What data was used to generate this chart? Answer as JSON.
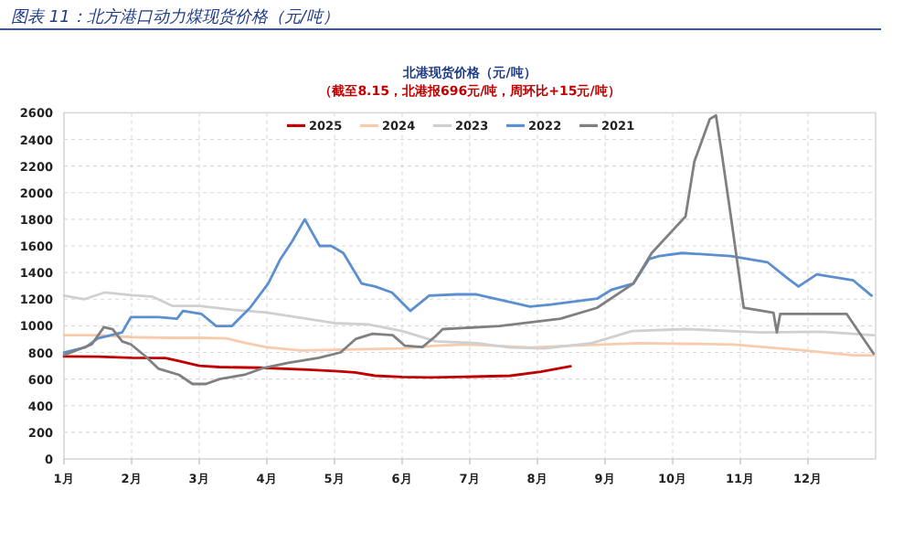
{
  "chart_data": {
    "type": "line",
    "title": "图表 11：北方港口动力煤现货价格（元/吨）",
    "subtitle": "北港现货价格（元/吨）",
    "annotations": [
      "（截至8.15，北港报696元/吨，周环比+15元/吨）"
    ],
    "xlim": [
      1,
      13
    ],
    "xticks": [
      {
        "value": 1,
        "label": "1月"
      },
      {
        "value": 2,
        "label": "2月"
      },
      {
        "value": 3,
        "label": "3月"
      },
      {
        "value": 4,
        "label": "4月"
      },
      {
        "value": 5,
        "label": "5月"
      },
      {
        "value": 6,
        "label": "6月"
      },
      {
        "value": 7,
        "label": "7月"
      },
      {
        "value": 8,
        "label": "8月"
      },
      {
        "value": 9,
        "label": "9月"
      },
      {
        "value": 10,
        "label": "10月"
      },
      {
        "value": 11,
        "label": "11月"
      },
      {
        "value": 12,
        "label": "12月"
      }
    ],
    "ylim": [
      0,
      2600
    ],
    "yticks": [
      0,
      200,
      400,
      600,
      800,
      1000,
      1200,
      1400,
      1600,
      1800,
      2000,
      2200,
      2400,
      2600
    ],
    "grid": true,
    "legend": "top",
    "marker": "none",
    "line_style": "solid",
    "series": [
      {
        "name": "2025",
        "color": "#c00000",
        "x": [
          1,
          1.5,
          2,
          2.5,
          2.7,
          3,
          3.3,
          3.9,
          4.6,
          5,
          5.3,
          5.6,
          6,
          6.4,
          6.8,
          7.6,
          8.05,
          8.49
        ],
        "values": [
          770,
          768,
          760,
          758,
          735,
          700,
          690,
          685,
          670,
          660,
          650,
          625,
          615,
          612,
          615,
          625,
          655,
          696
        ]
      },
      {
        "name": "2024",
        "color": "#f8cbad",
        "x": [
          1,
          1.5,
          2,
          2.5,
          3,
          3.4,
          3.7,
          4,
          4.5,
          5,
          5.5,
          6,
          6.5,
          7,
          7.9,
          8.5,
          9.5,
          10.9,
          11.95,
          12.67,
          12.97
        ],
        "values": [
          930,
          930,
          915,
          910,
          910,
          905,
          870,
          838,
          815,
          820,
          825,
          830,
          850,
          860,
          837,
          850,
          870,
          860,
          815,
          778,
          778
        ]
      },
      {
        "name": "2023",
        "color": "#d0d0d0",
        "x": [
          1,
          1.3,
          1.6,
          2,
          2.3,
          2.6,
          3,
          3.5,
          4,
          4.5,
          5,
          5.5,
          6,
          6.5,
          7.1,
          7.6,
          8.1,
          8.8,
          9.4,
          10.2,
          11.3,
          12.2,
          12.97
        ],
        "values": [
          1227,
          1200,
          1250,
          1230,
          1220,
          1150,
          1150,
          1120,
          1100,
          1060,
          1020,
          1010,
          960,
          883,
          870,
          837,
          830,
          870,
          960,
          975,
          950,
          955,
          930
        ]
      },
      {
        "name": "2022",
        "color": "#5b8fd0",
        "x": [
          1,
          1.32,
          1.5,
          1.86,
          1.99,
          2.4,
          2.67,
          2.76,
          3.03,
          3.25,
          3.48,
          3.75,
          4.02,
          4.2,
          4.38,
          4.56,
          4.78,
          4.95,
          5.13,
          5.4,
          5.6,
          5.85,
          6.12,
          6.4,
          6.8,
          7.1,
          7.89,
          8.2,
          8.88,
          9.1,
          9.42,
          9.65,
          9.8,
          10.14,
          10.86,
          11.4,
          11.68,
          11.86,
          12.13,
          12.4,
          12.67,
          12.94
        ],
        "values": [
          800,
          838,
          906,
          950,
          1066,
          1066,
          1053,
          1112,
          1090,
          998,
          998,
          1135,
          1318,
          1501,
          1640,
          1800,
          1600,
          1600,
          1547,
          1318,
          1295,
          1250,
          1112,
          1227,
          1236,
          1236,
          1144,
          1160,
          1204,
          1272,
          1318,
          1501,
          1524,
          1547,
          1524,
          1478,
          1364,
          1295,
          1387,
          1364,
          1341,
          1227
        ]
      },
      {
        "name": "2021",
        "color": "#808080",
        "x": [
          1,
          1.41,
          1.59,
          1.72,
          1.86,
          1.99,
          2.21,
          2.4,
          2.7,
          2.9,
          3.1,
          3.3,
          3.67,
          3.93,
          4.3,
          4.77,
          5.09,
          5.31,
          5.56,
          5.86,
          6.04,
          6.3,
          6.49,
          6.6,
          7.44,
          8.34,
          8.88,
          9.42,
          9.69,
          10.19,
          10.32,
          10.55,
          10.64,
          10.73,
          10.86,
          11.05,
          11.49,
          11.54,
          11.59,
          12.57,
          12.97
        ],
        "values": [
          780,
          860,
          990,
          975,
          883,
          860,
          769,
          677,
          632,
          563,
          563,
          600,
          632,
          680,
          720,
          760,
          800,
          900,
          940,
          930,
          850,
          840,
          920,
          975,
          998,
          1053,
          1135,
          1318,
          1547,
          1822,
          2234,
          2554,
          2580,
          2279,
          1822,
          1135,
          1098,
          951,
          1090,
          1090,
          792
        ]
      }
    ]
  }
}
